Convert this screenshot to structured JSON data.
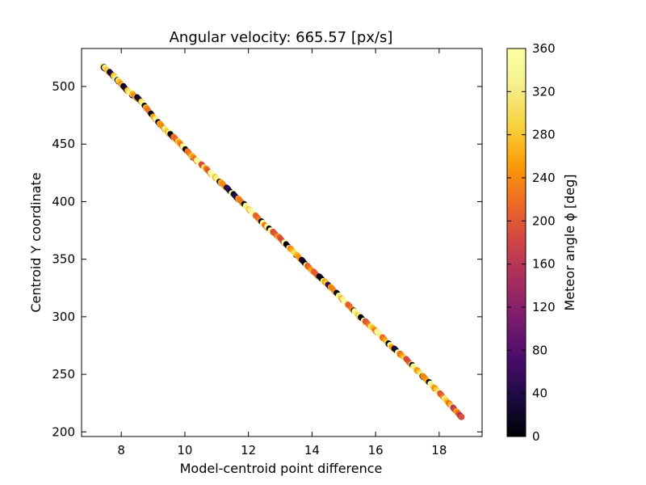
{
  "chart_data": {
    "type": "scatter",
    "title": "Angular velocity: 665.57 [px/s]",
    "xlabel": "Model-centroid  point difference",
    "ylabel": "Centroid Y coordinate",
    "xlim": [
      6.75,
      19.35
    ],
    "ylim": [
      196,
      533
    ],
    "x_ticks": [
      8,
      10,
      12,
      14,
      16,
      18
    ],
    "y_ticks": [
      200,
      250,
      300,
      350,
      400,
      450,
      500
    ],
    "colorbar": {
      "label": "Meteor angle ϕ [deg]",
      "min": 0,
      "max": 360,
      "ticks": [
        0,
        40,
        80,
        120,
        160,
        200,
        240,
        280,
        320,
        360
      ],
      "colormap": "inferno"
    },
    "series": [
      {
        "x_start": 7.4,
        "y_start": 518,
        "x_end": 18.7,
        "y_end": 213,
        "description_points": [
          [
            7.4,
            518,
            330
          ],
          [
            7.8,
            508,
            320
          ],
          [
            8.2,
            496,
            300
          ],
          [
            8.6,
            488,
            310
          ],
          [
            9.0,
            474,
            290
          ],
          [
            9.4,
            462,
            330
          ],
          [
            9.8,
            452,
            280
          ],
          [
            10.2,
            440,
            300
          ],
          [
            10.6,
            430,
            260
          ],
          [
            11.0,
            420,
            290
          ],
          [
            11.5,
            407,
            340
          ],
          [
            12.0,
            394,
            270
          ],
          [
            12.5,
            380,
            300
          ],
          [
            13.0,
            368,
            250
          ],
          [
            13.5,
            354,
            340
          ],
          [
            14.0,
            340,
            260
          ],
          [
            14.5,
            328,
            330
          ],
          [
            15.0,
            314,
            270
          ],
          [
            15.5,
            300,
            300
          ],
          [
            16.0,
            288,
            240
          ],
          [
            16.5,
            274,
            330
          ],
          [
            17.0,
            262,
            260
          ],
          [
            17.5,
            248,
            320
          ],
          [
            18.0,
            234,
            280
          ],
          [
            18.4,
            222,
            250
          ],
          [
            18.7,
            213,
            190
          ]
        ]
      }
    ],
    "grid": false
  }
}
